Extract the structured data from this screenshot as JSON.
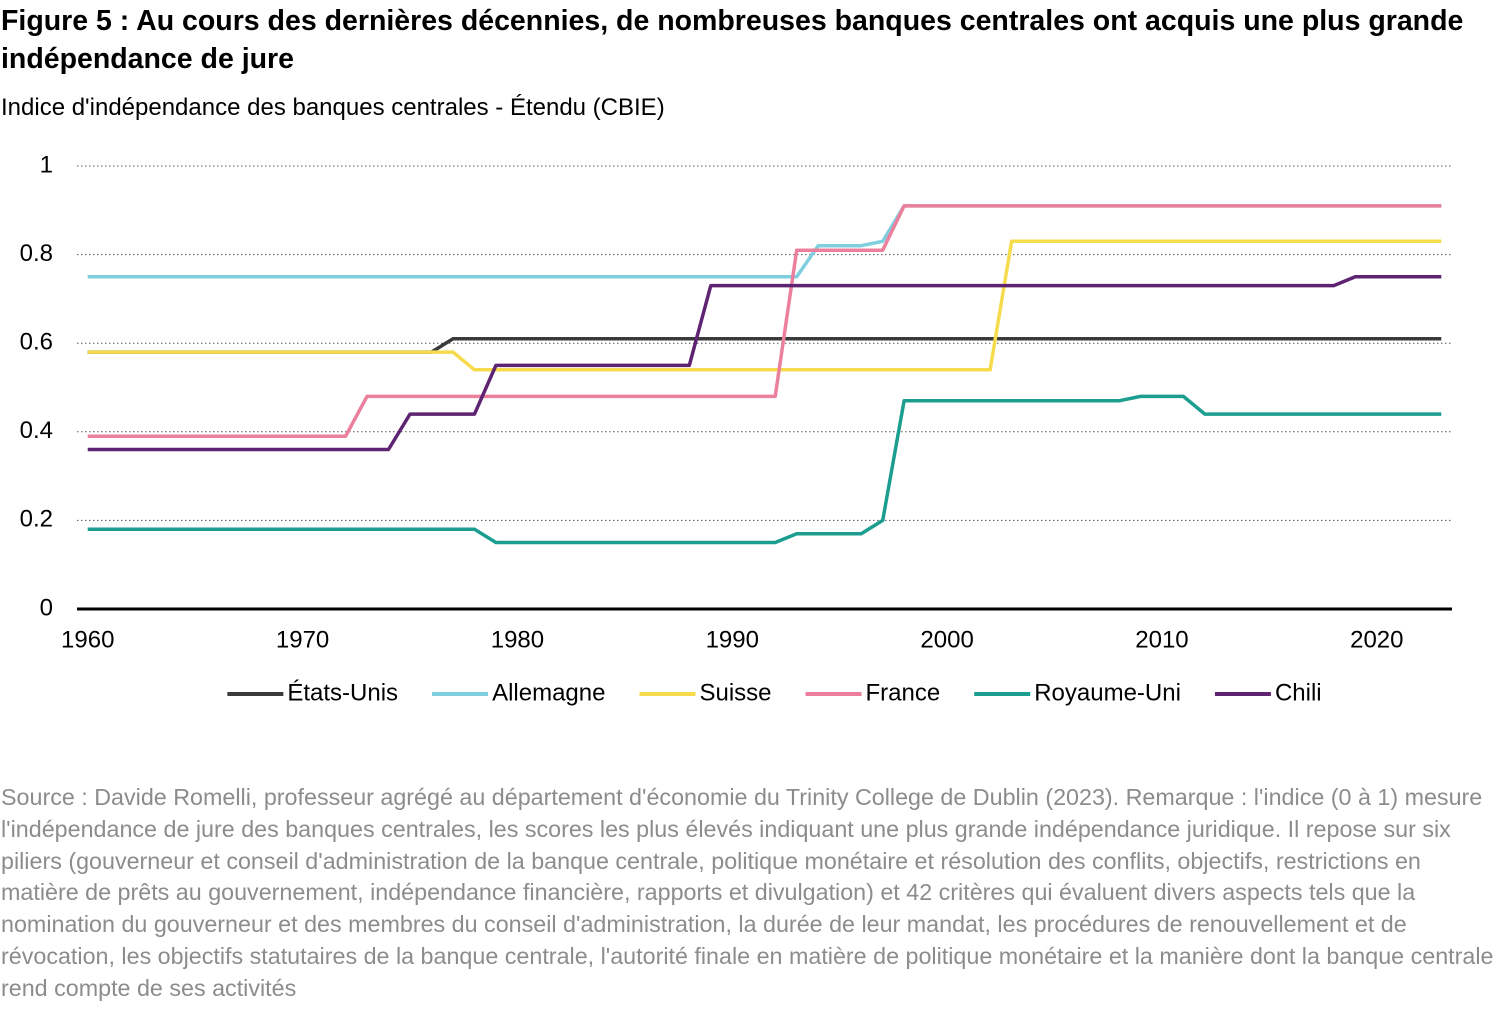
{
  "chart_data": {
    "type": "line",
    "title": "Figure 5 : Au cours des dernières décennies, de nombreuses banques centrales ont acquis une plus grande indépendance de jure",
    "subtitle": "Indice d'indépendance des banques centrales - Étendu (CBIE)",
    "x": [
      1960,
      1961,
      1962,
      1963,
      1964,
      1965,
      1966,
      1967,
      1968,
      1969,
      1970,
      1971,
      1972,
      1973,
      1974,
      1975,
      1976,
      1977,
      1978,
      1979,
      1980,
      1981,
      1982,
      1983,
      1984,
      1985,
      1986,
      1987,
      1988,
      1989,
      1990,
      1991,
      1992,
      1993,
      1994,
      1995,
      1996,
      1997,
      1998,
      1999,
      2000,
      2001,
      2002,
      2003,
      2004,
      2005,
      2006,
      2007,
      2008,
      2009,
      2010,
      2011,
      2012,
      2013,
      2014,
      2015,
      2016,
      2017,
      2018,
      2019,
      2020,
      2021,
      2022,
      2023
    ],
    "series": [
      {
        "name": "États-Unis",
        "color": "#3a3a3a",
        "values": [
          0.58,
          0.58,
          0.58,
          0.58,
          0.58,
          0.58,
          0.58,
          0.58,
          0.58,
          0.58,
          0.58,
          0.58,
          0.58,
          0.58,
          0.58,
          0.58,
          0.58,
          0.61,
          0.61,
          0.61,
          0.61,
          0.61,
          0.61,
          0.61,
          0.61,
          0.61,
          0.61,
          0.61,
          0.61,
          0.61,
          0.61,
          0.61,
          0.61,
          0.61,
          0.61,
          0.61,
          0.61,
          0.61,
          0.61,
          0.61,
          0.61,
          0.61,
          0.61,
          0.61,
          0.61,
          0.61,
          0.61,
          0.61,
          0.61,
          0.61,
          0.61,
          0.61,
          0.61,
          0.61,
          0.61,
          0.61,
          0.61,
          0.61,
          0.61,
          0.61,
          0.61,
          0.61,
          0.61,
          0.61
        ]
      },
      {
        "name": "Allemagne",
        "color": "#80cfe0",
        "values": [
          0.75,
          0.75,
          0.75,
          0.75,
          0.75,
          0.75,
          0.75,
          0.75,
          0.75,
          0.75,
          0.75,
          0.75,
          0.75,
          0.75,
          0.75,
          0.75,
          0.75,
          0.75,
          0.75,
          0.75,
          0.75,
          0.75,
          0.75,
          0.75,
          0.75,
          0.75,
          0.75,
          0.75,
          0.75,
          0.75,
          0.75,
          0.75,
          0.75,
          0.75,
          0.82,
          0.82,
          0.82,
          0.83,
          0.91,
          0.91,
          0.91,
          0.91,
          0.91,
          0.91,
          0.91,
          0.91,
          0.91,
          0.91,
          0.91,
          0.91,
          0.91,
          0.91,
          0.91,
          0.91,
          0.91,
          0.91,
          0.91,
          0.91,
          0.91,
          0.91,
          0.91,
          0.91,
          0.91,
          0.91
        ]
      },
      {
        "name": "Suisse",
        "color": "#f6dc4c",
        "values": [
          0.58,
          0.58,
          0.58,
          0.58,
          0.58,
          0.58,
          0.58,
          0.58,
          0.58,
          0.58,
          0.58,
          0.58,
          0.58,
          0.58,
          0.58,
          0.58,
          0.58,
          0.58,
          0.54,
          0.54,
          0.54,
          0.54,
          0.54,
          0.54,
          0.54,
          0.54,
          0.54,
          0.54,
          0.54,
          0.54,
          0.54,
          0.54,
          0.54,
          0.54,
          0.54,
          0.54,
          0.54,
          0.54,
          0.54,
          0.54,
          0.54,
          0.54,
          0.54,
          0.83,
          0.83,
          0.83,
          0.83,
          0.83,
          0.83,
          0.83,
          0.83,
          0.83,
          0.83,
          0.83,
          0.83,
          0.83,
          0.83,
          0.83,
          0.83,
          0.83,
          0.83,
          0.83,
          0.83,
          0.83
        ]
      },
      {
        "name": "France",
        "color": "#ec809c",
        "values": [
          0.39,
          0.39,
          0.39,
          0.39,
          0.39,
          0.39,
          0.39,
          0.39,
          0.39,
          0.39,
          0.39,
          0.39,
          0.39,
          0.48,
          0.48,
          0.48,
          0.48,
          0.48,
          0.48,
          0.48,
          0.48,
          0.48,
          0.48,
          0.48,
          0.48,
          0.48,
          0.48,
          0.48,
          0.48,
          0.48,
          0.48,
          0.48,
          0.48,
          0.81,
          0.81,
          0.81,
          0.81,
          0.81,
          0.91,
          0.91,
          0.91,
          0.91,
          0.91,
          0.91,
          0.91,
          0.91,
          0.91,
          0.91,
          0.91,
          0.91,
          0.91,
          0.91,
          0.91,
          0.91,
          0.91,
          0.91,
          0.91,
          0.91,
          0.91,
          0.91,
          0.91,
          0.91,
          0.91,
          0.91
        ]
      },
      {
        "name": "Royaume-Uni",
        "color": "#1b9e8f",
        "values": [
          0.18,
          0.18,
          0.18,
          0.18,
          0.18,
          0.18,
          0.18,
          0.18,
          0.18,
          0.18,
          0.18,
          0.18,
          0.18,
          0.18,
          0.18,
          0.18,
          0.18,
          0.18,
          0.18,
          0.15,
          0.15,
          0.15,
          0.15,
          0.15,
          0.15,
          0.15,
          0.15,
          0.15,
          0.15,
          0.15,
          0.15,
          0.15,
          0.15,
          0.17,
          0.17,
          0.17,
          0.17,
          0.2,
          0.47,
          0.47,
          0.47,
          0.47,
          0.47,
          0.47,
          0.47,
          0.47,
          0.47,
          0.47,
          0.47,
          0.48,
          0.48,
          0.48,
          0.44,
          0.44,
          0.44,
          0.44,
          0.44,
          0.44,
          0.44,
          0.44,
          0.44,
          0.44,
          0.44,
          0.44
        ]
      },
      {
        "name": "Chili",
        "color": "#5e2472",
        "values": [
          0.36,
          0.36,
          0.36,
          0.36,
          0.36,
          0.36,
          0.36,
          0.36,
          0.36,
          0.36,
          0.36,
          0.36,
          0.36,
          0.36,
          0.36,
          0.44,
          0.44,
          0.44,
          0.44,
          0.55,
          0.55,
          0.55,
          0.55,
          0.55,
          0.55,
          0.55,
          0.55,
          0.55,
          0.55,
          0.73,
          0.73,
          0.73,
          0.73,
          0.73,
          0.73,
          0.73,
          0.73,
          0.73,
          0.73,
          0.73,
          0.73,
          0.73,
          0.73,
          0.73,
          0.73,
          0.73,
          0.73,
          0.73,
          0.73,
          0.73,
          0.73,
          0.73,
          0.73,
          0.73,
          0.73,
          0.73,
          0.73,
          0.73,
          0.73,
          0.75,
          0.75,
          0.75,
          0.75,
          0.75
        ]
      }
    ],
    "xlim": [
      1959.5,
      2023.5
    ],
    "xticks": [
      1960,
      1970,
      1980,
      1990,
      2000,
      2010,
      2020
    ],
    "ylim": [
      0,
      1
    ],
    "yticks": [
      0,
      0.2,
      0.4,
      0.6,
      0.8,
      1
    ],
    "grid": true,
    "legend": "bottom",
    "note": "Source : Davide Romelli, professeur agrégé au département d'économie du Trinity College de Dublin (2023). Remarque : l'indice (0 à 1) mesure l'indépendance de jure des banques centrales, les scores les plus élevés indiquant une plus grande indépendance juridique. Il repose sur six piliers (gouverneur et conseil d'administration de la banque centrale, politique monétaire et résolution des conflits, objectifs, restrictions en matière de prêts au gouvernement, indépendance financière, rapports et divulgation) et 42 critères qui évaluent divers aspects tels que la nomination du gouverneur et des membres du conseil d'administration, la durée de leur mandat, les procédures de renouvellement et de révocation, les objectifs statutaires de la banque centrale, l'autorité finale en matière de politique monétaire et la manière dont la banque centrale rend compte de ses activités"
  }
}
